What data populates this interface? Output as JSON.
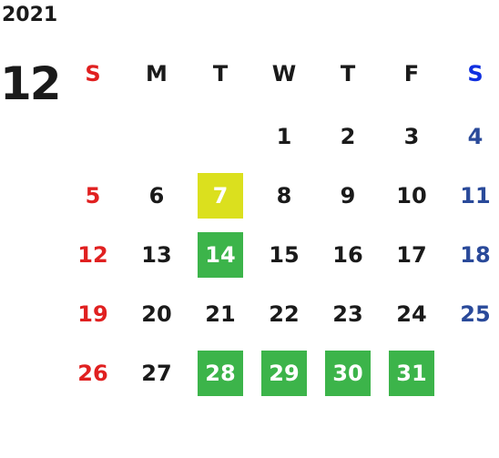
{
  "year": "2021",
  "month": "12",
  "weekdays": [
    "S",
    "M",
    "T",
    "W",
    "T",
    "F",
    "S"
  ],
  "weeks": [
    [
      "",
      "",
      "",
      "1",
      "2",
      "3",
      "4"
    ],
    [
      "5",
      "6",
      "7",
      "8",
      "9",
      "10",
      "11"
    ],
    [
      "12",
      "13",
      "14",
      "15",
      "16",
      "17",
      "18"
    ],
    [
      "19",
      "20",
      "21",
      "22",
      "23",
      "24",
      "25"
    ],
    [
      "26",
      "27",
      "28",
      "29",
      "30",
      "31",
      ""
    ]
  ],
  "colors": {
    "sunday": "#e02020",
    "saturday_header": "#1030e0",
    "saturday": "#2a4a9a",
    "highlight_yellow": "#dbe01e",
    "highlight_green": "#3cb44a"
  },
  "highlights": {
    "7": "yellow",
    "14": "green",
    "28": "green",
    "29": "green",
    "30": "green",
    "31": "green"
  }
}
